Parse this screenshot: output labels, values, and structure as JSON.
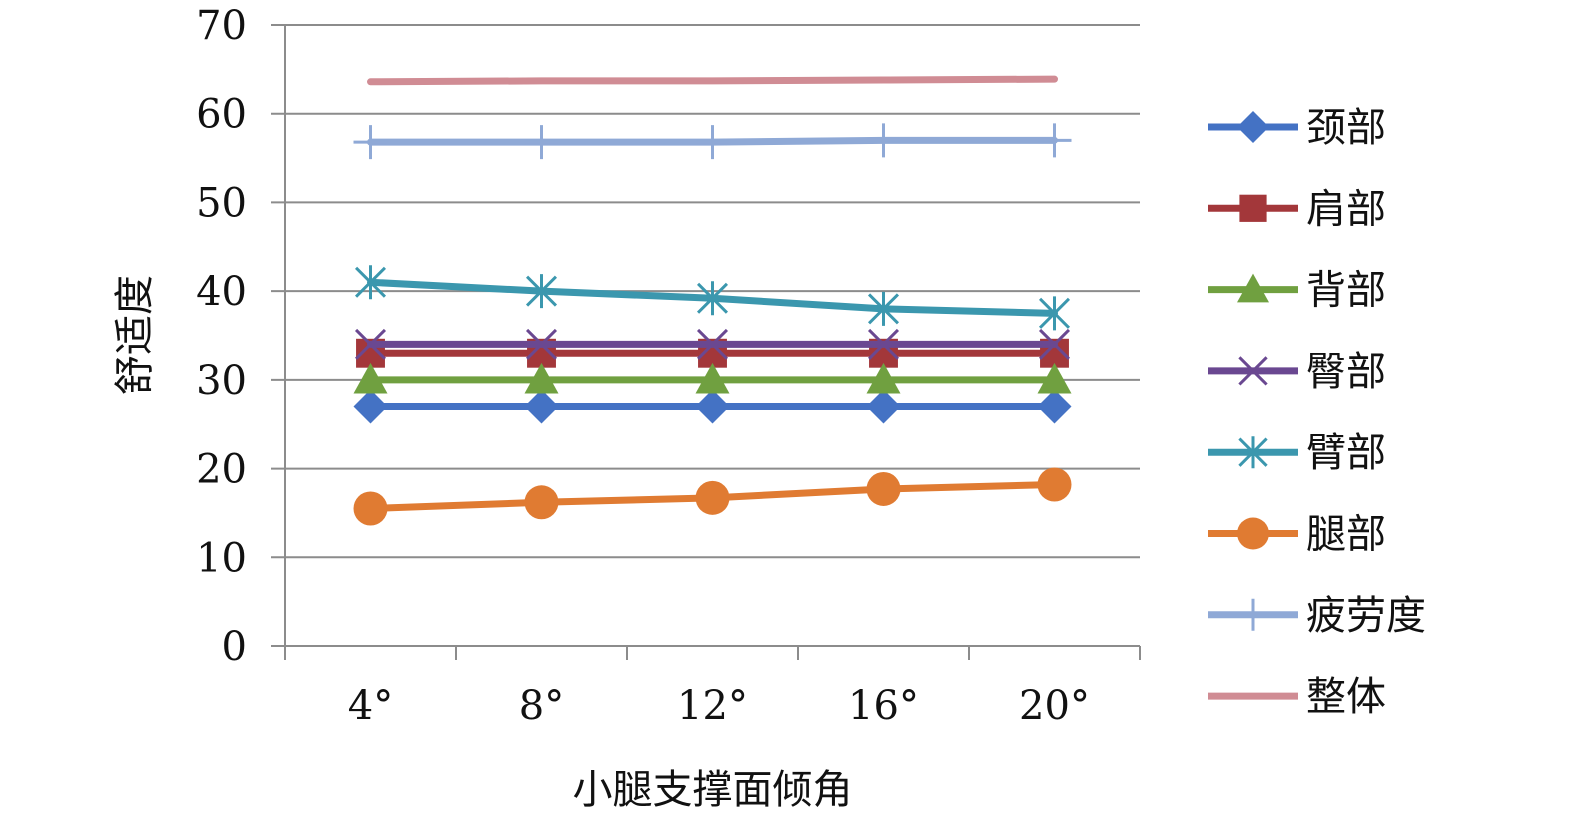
{
  "chart_data": {
    "type": "line",
    "title": "",
    "xlabel": "小腿支撑面倾角",
    "ylabel": "舒适度",
    "categories": [
      "4°",
      "8°",
      "12°",
      "16°",
      "20°"
    ],
    "ylim": [
      0,
      70
    ],
    "yticks": [
      "0",
      "10",
      "20",
      "30",
      "40",
      "50",
      "60",
      "70"
    ],
    "grid": true,
    "legend_position": "right",
    "series": [
      {
        "name": "颈部",
        "values": [
          27,
          27,
          27,
          27,
          27
        ],
        "color": "#4472C4",
        "marker": "diamond"
      },
      {
        "name": "肩部",
        "values": [
          33,
          33,
          33,
          33,
          33
        ],
        "color": "#A3373A",
        "marker": "square"
      },
      {
        "name": "背部",
        "values": [
          30,
          30,
          30,
          30,
          30
        ],
        "color": "#70A040",
        "marker": "triangle"
      },
      {
        "name": "臀部",
        "values": [
          34,
          34,
          34,
          34,
          34
        ],
        "color": "#6A4891",
        "marker": "x"
      },
      {
        "name": "臂部",
        "values": [
          41,
          40,
          39.2,
          38,
          37.5
        ],
        "color": "#3B97AE",
        "marker": "asterisk"
      },
      {
        "name": "腿部",
        "values": [
          15.5,
          16.2,
          16.7,
          17.7,
          18.2
        ],
        "color": "#E07B32",
        "marker": "circle"
      },
      {
        "name": "疲劳度",
        "values": [
          56.8,
          56.8,
          56.8,
          57,
          57
        ],
        "color": "#8FA9D6",
        "marker": "plus"
      },
      {
        "name": "整体",
        "values": [
          63.6,
          63.7,
          63.7,
          63.8,
          63.9
        ],
        "color": "#D08C94",
        "marker": "none"
      }
    ]
  }
}
